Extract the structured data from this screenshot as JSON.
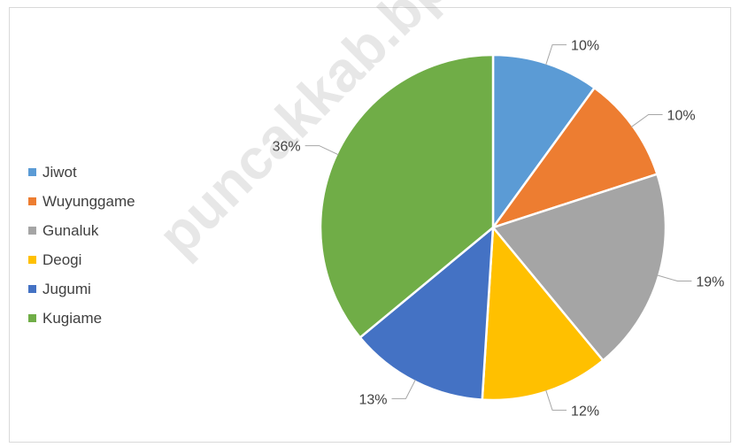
{
  "chart_data": {
    "type": "pie",
    "title": "",
    "categories": [
      "Jiwot",
      "Wuyunggame",
      "Gunaluk",
      "Deogi",
      "Jugumi",
      "Kugiame"
    ],
    "values": [
      10,
      10,
      19,
      12,
      13,
      36
    ],
    "data_labels": [
      "10%",
      "10%",
      "19%",
      "12%",
      "13%",
      "36%"
    ],
    "colors": [
      "#5b9bd5",
      "#ed7d31",
      "#a5a5a5",
      "#ffc000",
      "#4472c4",
      "#70ad47"
    ],
    "legend_position": "left"
  },
  "watermark": "puncakkab.bps.go.id"
}
